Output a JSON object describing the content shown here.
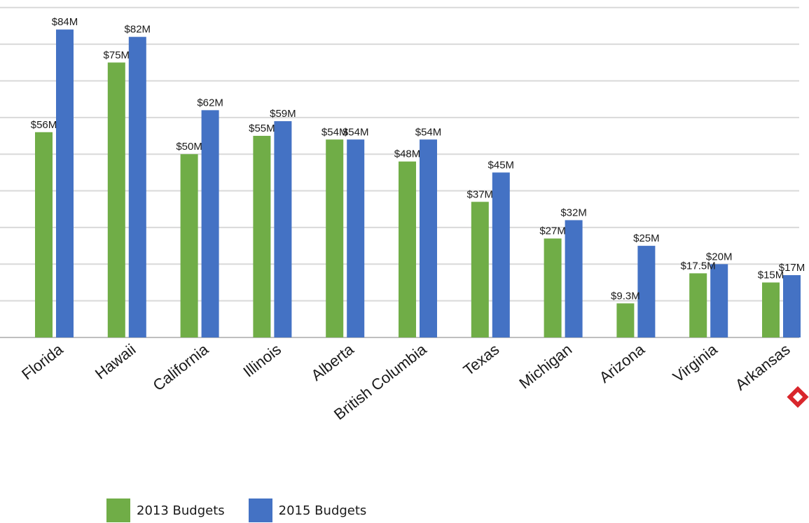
{
  "chart_data": {
    "type": "bar",
    "categories": [
      "Florida",
      "Hawaii",
      "California",
      "Illinois",
      "Alberta",
      "British Columbia",
      "Texas",
      "Michigan",
      "Arizona",
      "Virginia",
      "Arkansas"
    ],
    "series": [
      {
        "name": "2013 Budgets",
        "color": "#70ad47",
        "values": [
          56,
          75,
          50,
          55,
          54,
          48,
          37,
          27,
          9.3,
          17.5,
          15
        ],
        "labels": [
          "$56M",
          "$75M",
          "$50M",
          "$55M",
          "$54M",
          "$48M",
          "$37M",
          "$27M",
          "$9.3M",
          "$17.5M",
          "$15M"
        ]
      },
      {
        "name": "2015 Budgets",
        "color": "#4472c4",
        "values": [
          84,
          82,
          62,
          59,
          54,
          54,
          45,
          32,
          25,
          20,
          17
        ],
        "labels": [
          "$84M",
          "$82M",
          "$62M",
          "$59M",
          "$54M",
          "$54M",
          "$45M",
          "$32M",
          "$25M",
          "$20M",
          "$17M"
        ]
      }
    ],
    "ylim": [
      0,
      90
    ],
    "grid": true,
    "legend": "bottom-left"
  },
  "legend": {
    "items": [
      {
        "label": "2013 Budgets",
        "color": "#70ad47"
      },
      {
        "label": "2015 Budgets",
        "color": "#4472c4"
      }
    ]
  }
}
